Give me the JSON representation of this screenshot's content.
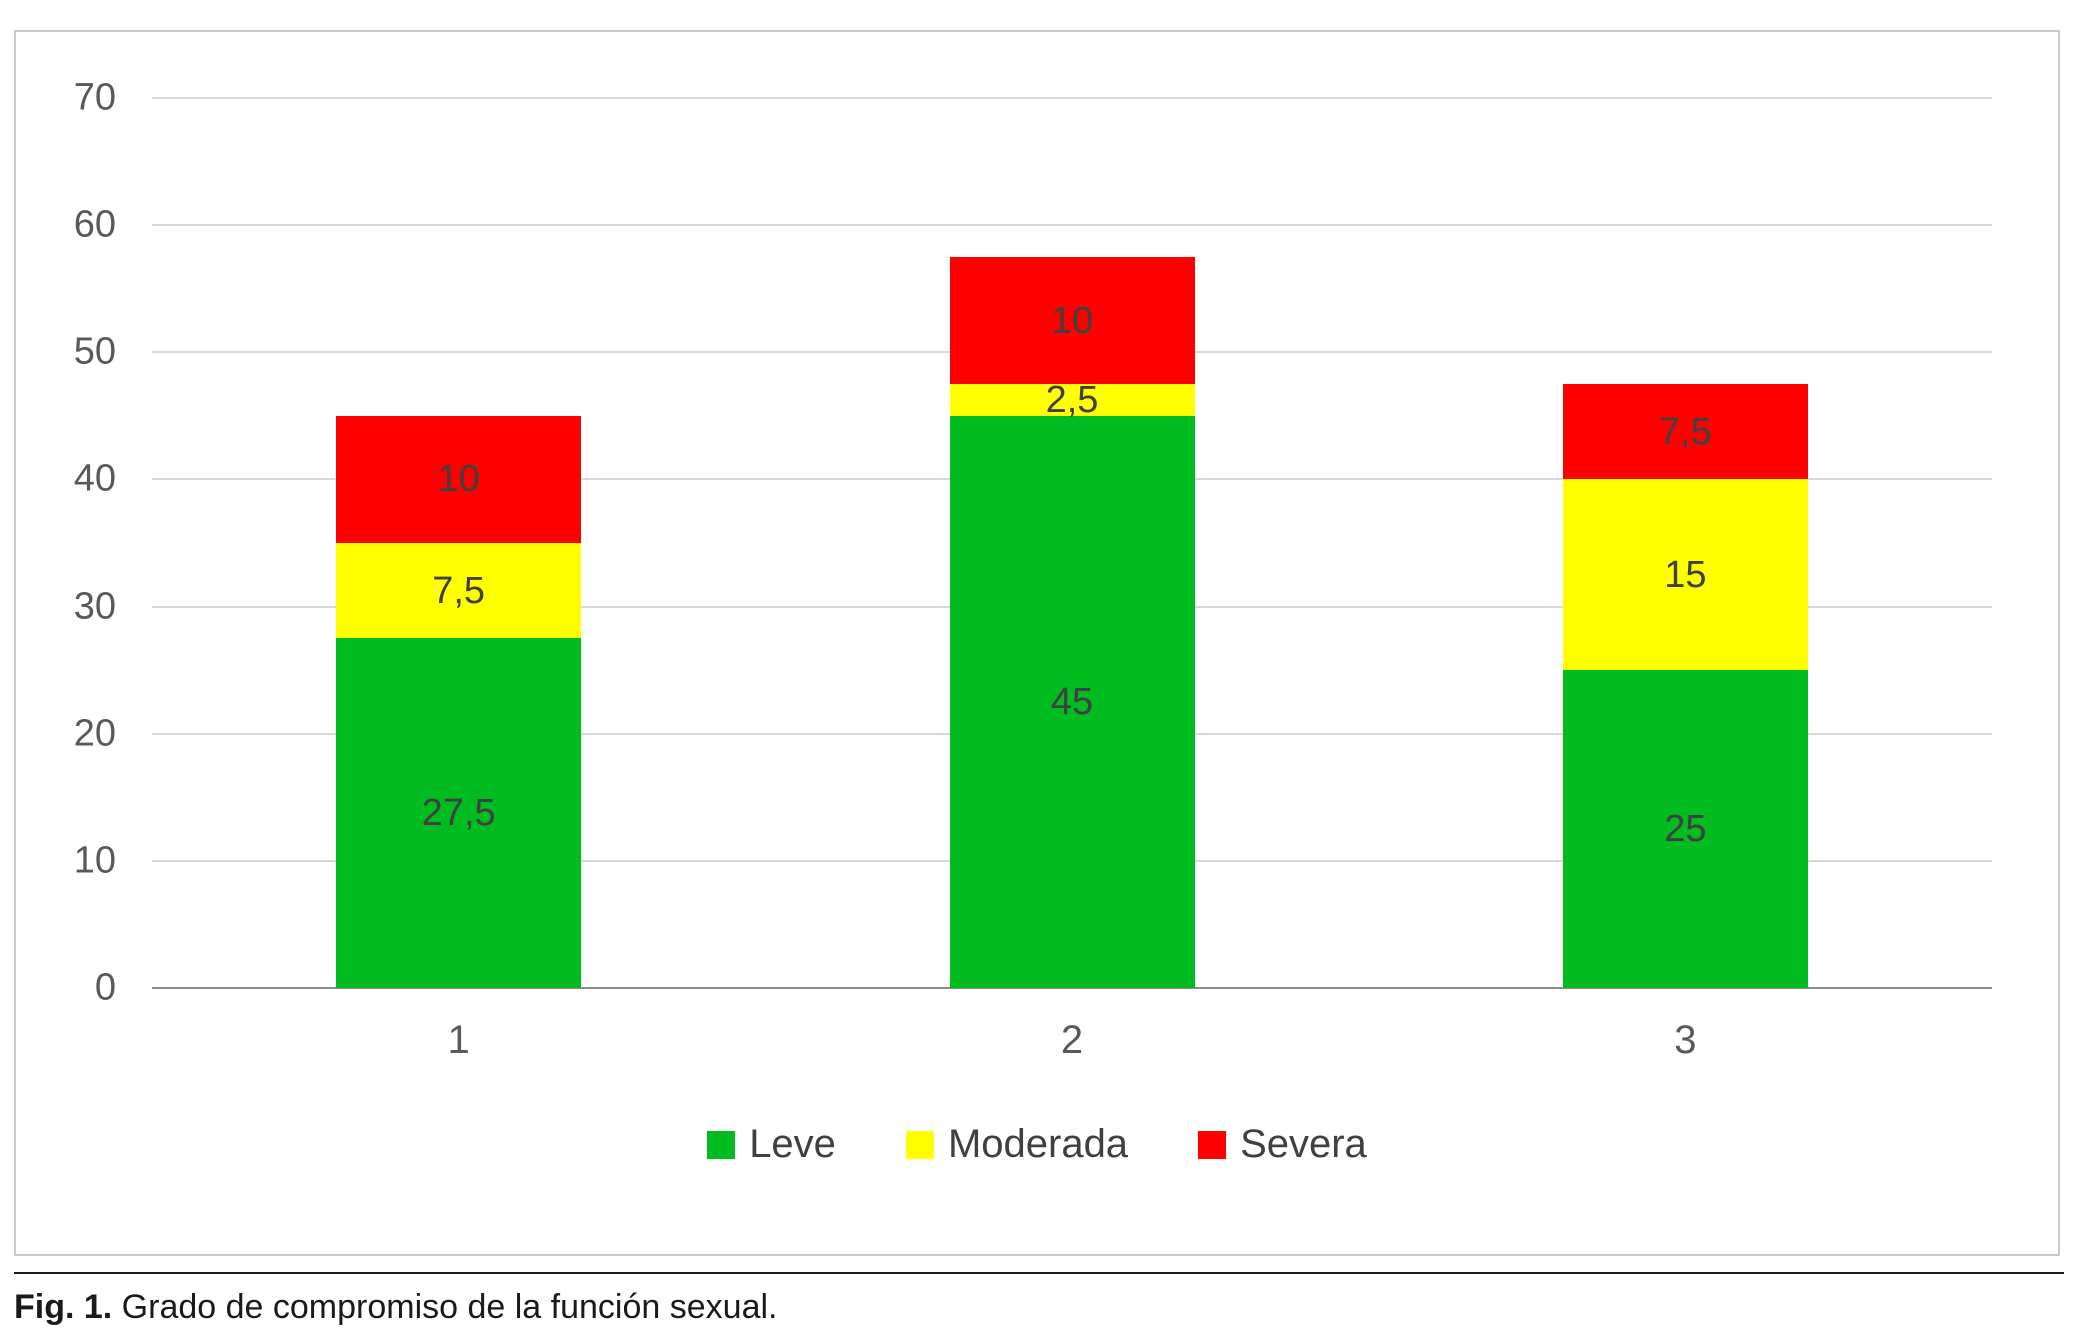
{
  "chart_data": {
    "type": "bar",
    "stacked": true,
    "title": "",
    "xlabel": "",
    "ylabel": "",
    "categories": [
      "1",
      "2",
      "3"
    ],
    "series": [
      {
        "name": "Leve",
        "color": "#00bc20",
        "values": [
          27.5,
          45,
          25
        ],
        "labels": [
          "27,5",
          "45",
          "25"
        ]
      },
      {
        "name": "Moderada",
        "color": "#ffff00",
        "values": [
          7.5,
          2.5,
          15
        ],
        "labels": [
          "7,5",
          "2,5",
          "15"
        ]
      },
      {
        "name": "Severa",
        "color": "#fe0000",
        "values": [
          10,
          10,
          7.5
        ],
        "labels": [
          "10",
          "10",
          "7,5"
        ]
      }
    ],
    "totals": [
      45,
      57.5,
      47.5
    ],
    "ylim": [
      0,
      70
    ],
    "yticks": [
      0,
      10,
      20,
      30,
      40,
      50,
      60,
      70
    ],
    "grid": true,
    "gridline_color": "#d9d9d9",
    "tick_label_color": "#595959",
    "data_label_color": "#404040",
    "legend_position": "bottom"
  },
  "caption": {
    "prefix": "Fig. 1.",
    "text": " Grado de compromiso de la función sexual."
  }
}
